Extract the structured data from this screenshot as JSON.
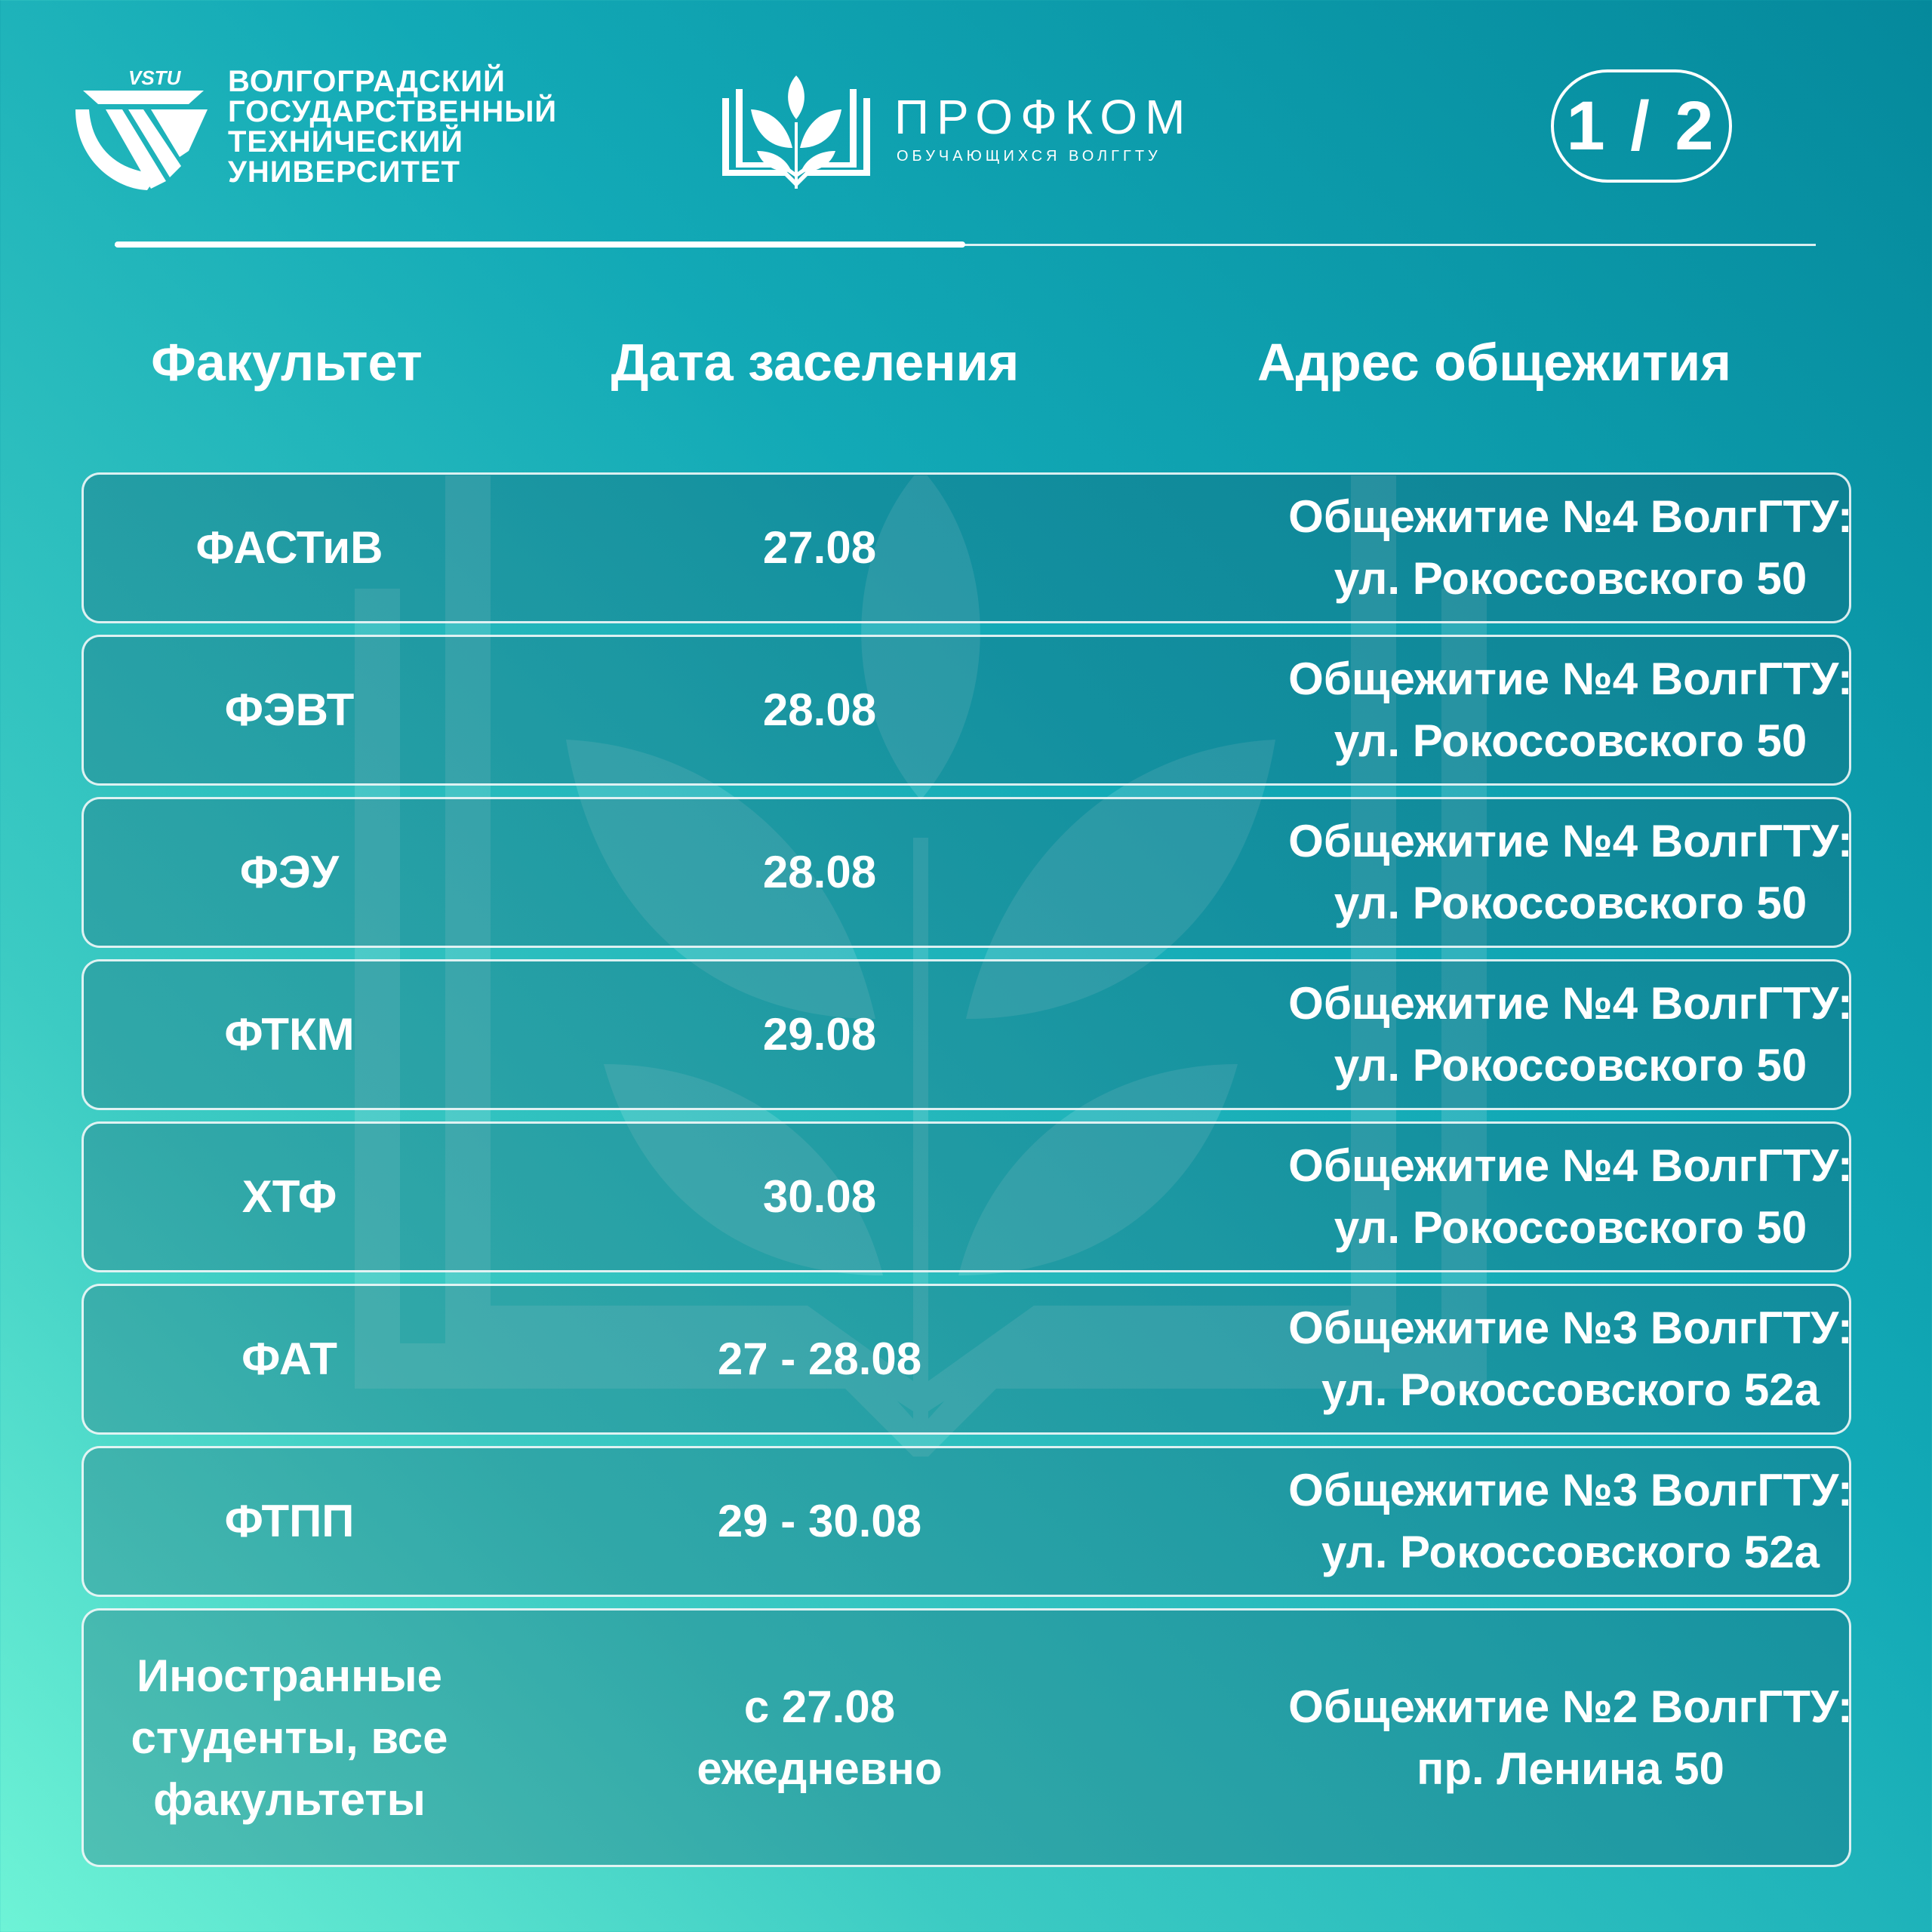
{
  "header": {
    "vstu_logo_text": "VSTU",
    "university_name_lines": [
      "ВОЛГОГРАДСКИЙ",
      "ГОСУДАРСТВЕННЫЙ",
      "ТЕХНИЧЕСКИЙ",
      "УНИВЕРСИТЕТ"
    ],
    "profcom_title": "ПРОФКОМ",
    "profcom_subtitle": "ОБУЧАЮЩИХСЯ ВОЛГГТУ",
    "page_indicator": "1 / 2",
    "progress_fraction": 0.5
  },
  "table": {
    "columns": [
      "Факультет",
      "Дата заселения",
      "Адрес общежития"
    ],
    "rows": [
      {
        "faculty": "ФАСТиВ",
        "date": "27.08",
        "address_line1": "Общежитие №4 ВолгГТУ:",
        "address_line2": "ул. Рокоссовского 50"
      },
      {
        "faculty": "ФЭВТ",
        "date": "28.08",
        "address_line1": "Общежитие №4 ВолгГТУ:",
        "address_line2": "ул. Рокоссовского 50"
      },
      {
        "faculty": "ФЭУ",
        "date": "28.08",
        "address_line1": "Общежитие №4 ВолгГТУ:",
        "address_line2": "ул. Рокоссовского 50"
      },
      {
        "faculty": "ФТКМ",
        "date": "29.08",
        "address_line1": "Общежитие №4 ВолгГТУ:",
        "address_line2": "ул. Рокоссовского 50"
      },
      {
        "faculty": "ХТФ",
        "date": "30.08",
        "address_line1": "Общежитие №4 ВолгГТУ:",
        "address_line2": "ул. Рокоссовского 50"
      },
      {
        "faculty": "ФАТ",
        "date": "27 - 28.08",
        "address_line1": "Общежитие №3 ВолгГТУ:",
        "address_line2": "ул. Рокоссовского 52а"
      },
      {
        "faculty": "ФТПП",
        "date": "29 - 30.08",
        "address_line1": "Общежитие №3 ВолгГТУ:",
        "address_line2": "ул. Рокоссовского 52а"
      }
    ],
    "last_row": {
      "faculty_lines": [
        "Иностранные",
        "студенты, все",
        "факультеты"
      ],
      "date_lines": [
        "с 27.08",
        "ежедневно"
      ],
      "address_line1": "Общежитие №2 ВолгГТУ:",
      "address_line2": "пр. Ленина 50"
    }
  }
}
